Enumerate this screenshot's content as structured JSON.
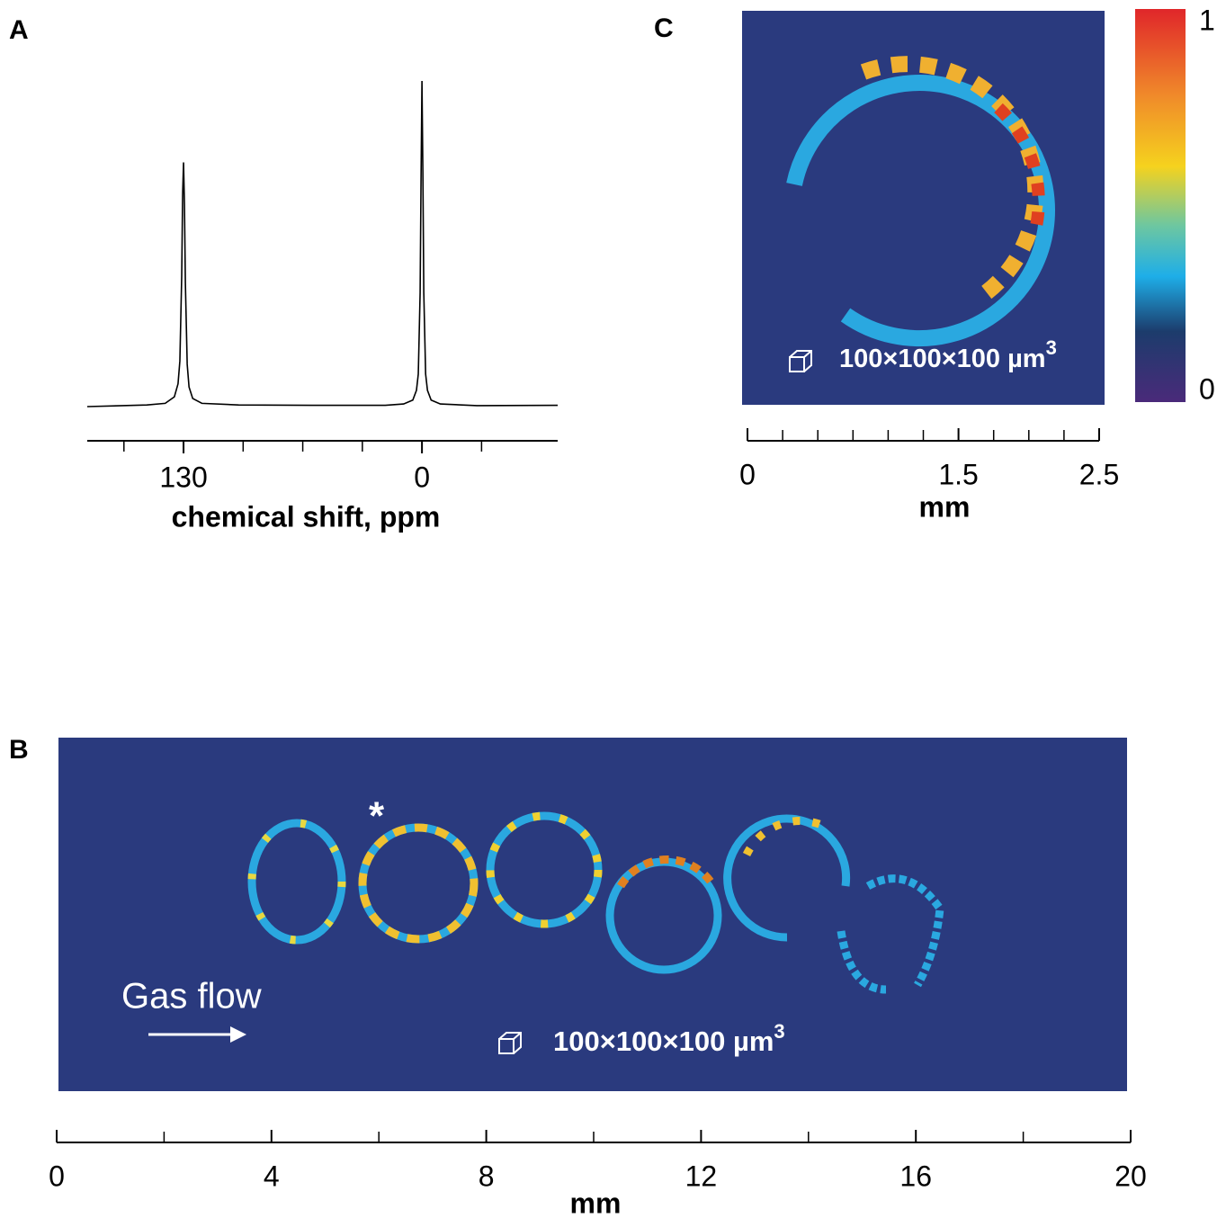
{
  "chart_data": [
    {
      "type": "line",
      "title": "A",
      "xlabel": "chemical shift, ppm",
      "xlim": [
        182.5,
        -74
      ],
      "xticks": [
        130,
        0
      ],
      "xminor_ticks": [
        162.5,
        97.5,
        65,
        32.5,
        -32.5
      ],
      "x": [
        182.5,
        150,
        140,
        135,
        133,
        132,
        131,
        130.5,
        130,
        129.5,
        129,
        128,
        127,
        125,
        120,
        100,
        60,
        20,
        10,
        5,
        3,
        2,
        1,
        0.5,
        0,
        -0.5,
        -1,
        -2,
        -3,
        -5,
        -10,
        -30,
        -74
      ],
      "ylim": [
        0,
        1
      ],
      "series": [
        {
          "color": "#000000",
          "values": [
            0,
            0.005,
            0.01,
            0.03,
            0.07,
            0.14,
            0.4,
            0.65,
            0.75,
            0.62,
            0.38,
            0.13,
            0.06,
            0.025,
            0.01,
            0.005,
            0.004,
            0.004,
            0.008,
            0.02,
            0.05,
            0.1,
            0.35,
            0.7,
            1.0,
            0.72,
            0.35,
            0.1,
            0.05,
            0.02,
            0.008,
            0.003,
            0.004
          ]
        }
      ]
    },
    {
      "type": "image",
      "title": "B",
      "xlabel": "mm",
      "xlim": [
        0,
        20
      ],
      "xticks": [
        0,
        4,
        8,
        12,
        16,
        20
      ],
      "xminor_ticks": [
        2,
        6,
        10,
        14,
        18
      ],
      "annotations": [
        "Gas flow",
        "*"
      ],
      "voxel_label": "100×100×100 µm",
      "voxel_exp": "3"
    },
    {
      "type": "image",
      "title": "C",
      "xlabel": "mm",
      "xlim": [
        0,
        2.5
      ],
      "xticks": [
        0,
        1.5,
        2.5
      ],
      "xminor_ticks": [
        0.25,
        0.5,
        0.75,
        1,
        1.25,
        1.75,
        2,
        2.25
      ],
      "voxel_label": "100×100×100 µm",
      "voxel_exp": "3",
      "colorbar": {
        "lim": [
          0,
          1
        ],
        "ticks": [
          1,
          0
        ]
      }
    }
  ]
}
